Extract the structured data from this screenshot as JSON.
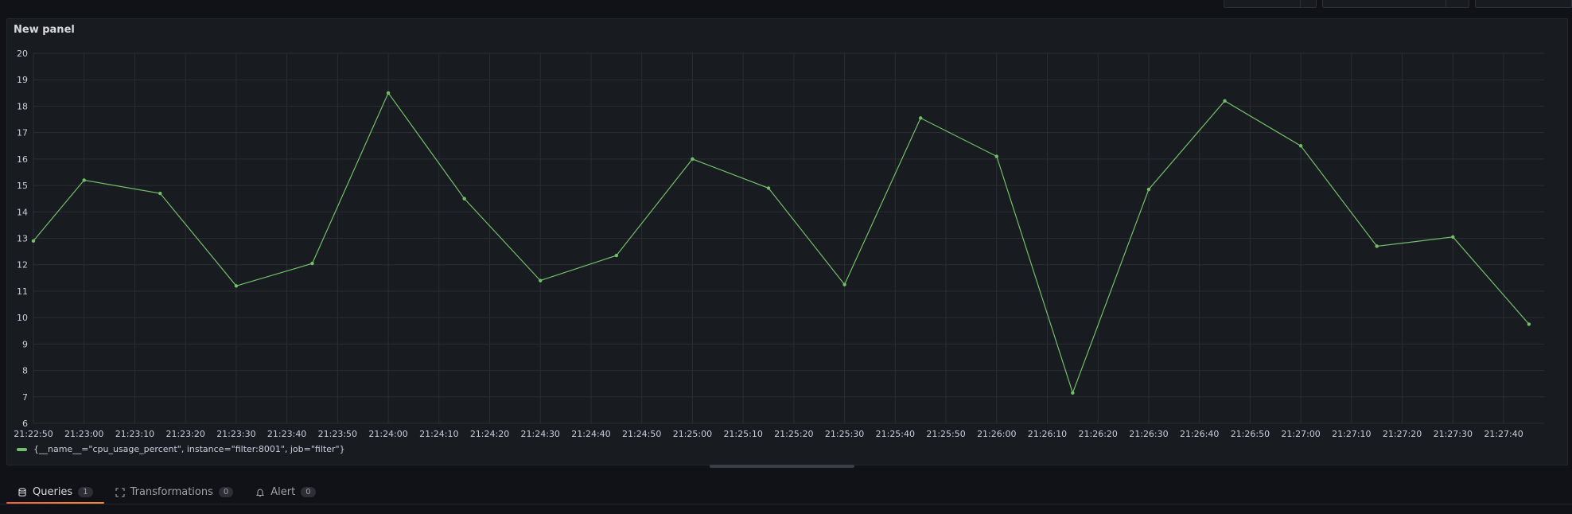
{
  "panel": {
    "title": "New panel"
  },
  "legend": {
    "series_label": "{__name__=\"cpu_usage_percent\", instance=\"filter:8001\", job=\"filter\"}"
  },
  "tabs": [
    {
      "label": "Queries",
      "count": "1",
      "icon": "database-icon"
    },
    {
      "label": "Transformations",
      "count": "0",
      "icon": "transform-icon"
    },
    {
      "label": "Alert",
      "count": "0",
      "icon": "bell-icon"
    }
  ],
  "colors": {
    "series": "#73bf69",
    "grid": "#2a2d33",
    "tab_underline": "#f55f3e"
  },
  "chart_data": {
    "type": "line",
    "title": "New panel",
    "xlabel": "",
    "ylabel": "",
    "ylim": [
      6,
      20
    ],
    "yticks": [
      "6",
      "7",
      "8",
      "9",
      "10",
      "11",
      "12",
      "13",
      "14",
      "15",
      "16",
      "17",
      "18",
      "19",
      "20"
    ],
    "xlim": [
      "21:22:50",
      "21:27:48"
    ],
    "xticks": [
      "21:22:50",
      "21:23:00",
      "21:23:10",
      "21:23:20",
      "21:23:30",
      "21:23:40",
      "21:23:50",
      "21:24:00",
      "21:24:10",
      "21:24:20",
      "21:24:30",
      "21:24:40",
      "21:24:50",
      "21:25:00",
      "21:25:10",
      "21:25:20",
      "21:25:30",
      "21:25:40",
      "21:25:50",
      "21:26:00",
      "21:26:10",
      "21:26:20",
      "21:26:30",
      "21:26:40",
      "21:26:50",
      "21:27:00",
      "21:27:10",
      "21:27:20",
      "21:27:30",
      "21:27:40"
    ],
    "grid": true,
    "legend": "bottom-left",
    "series": [
      {
        "name": "{__name__=\"cpu_usage_percent\", instance=\"filter:8001\", job=\"filter\"}",
        "x": [
          "21:22:50",
          "21:23:00",
          "21:23:15",
          "21:23:30",
          "21:23:45",
          "21:24:00",
          "21:24:15",
          "21:24:30",
          "21:24:45",
          "21:25:00",
          "21:25:15",
          "21:25:30",
          "21:25:45",
          "21:26:00",
          "21:26:15",
          "21:26:30",
          "21:26:45",
          "21:27:00",
          "21:27:15",
          "21:27:30",
          "21:27:45"
        ],
        "values": [
          12.9,
          15.2,
          14.7,
          11.2,
          12.05,
          18.5,
          14.5,
          11.4,
          12.35,
          16.0,
          14.9,
          11.25,
          17.55,
          16.1,
          7.15,
          14.85,
          18.2,
          16.5,
          12.7,
          13.05,
          9.75
        ]
      }
    ]
  }
}
